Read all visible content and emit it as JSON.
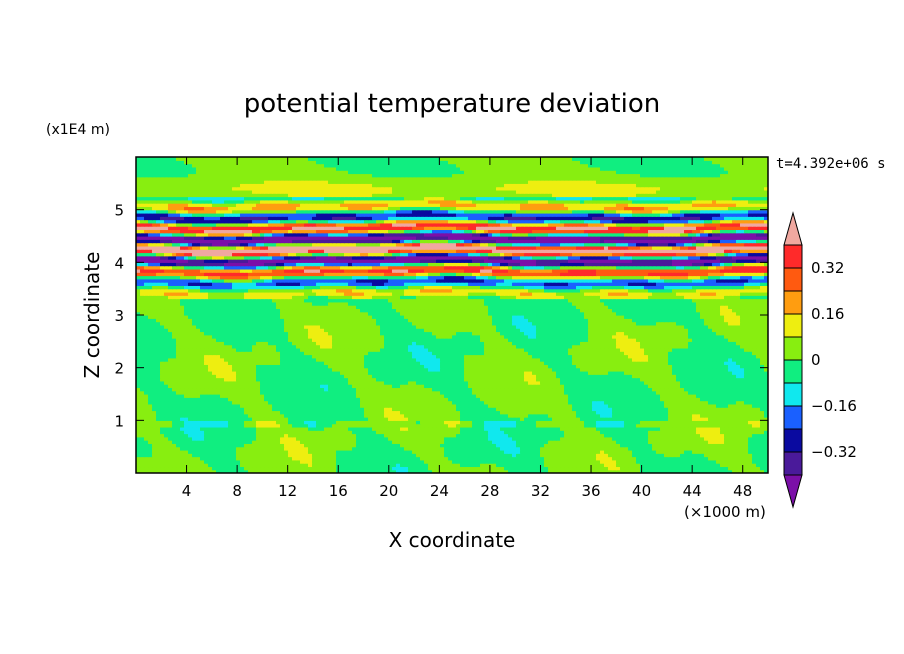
{
  "chart_data": {
    "type": "heatmap",
    "title": "potential temperature deviation",
    "xlabel": "X coordinate",
    "ylabel": "Z coordinate",
    "x_unit": "(×1000 m)",
    "y_unit": "(x1E4 m)",
    "time_label": "t=4.392e+06 s",
    "xlim": [
      0,
      50
    ],
    "ylim": [
      0,
      6
    ],
    "x_ticks": [
      4,
      8,
      12,
      16,
      20,
      24,
      28,
      32,
      36,
      40,
      44,
      48
    ],
    "y_ticks": [
      1,
      2,
      3,
      4,
      5
    ],
    "colorbar": {
      "levels": [
        -0.48,
        -0.4,
        -0.32,
        -0.24,
        -0.16,
        -0.08,
        0,
        0.08,
        0.16,
        0.24,
        0.32,
        0.4
      ],
      "tick_labels": [
        "0.32",
        "0.16",
        "0",
        "−0.16",
        "−0.32"
      ],
      "tick_values": [
        0.32,
        0.16,
        0,
        -0.16,
        -0.32
      ],
      "colors": [
        "#7b0fa8",
        "#4a1a9a",
        "#0a0aa0",
        "#1a60ff",
        "#10e8ee",
        "#10ee80",
        "#88ee10",
        "#eeee10",
        "#ff9d10",
        "#ff5a10",
        "#ff2a2a",
        "#f0a8a0"
      ],
      "extend": "both"
    },
    "grid": false
  }
}
